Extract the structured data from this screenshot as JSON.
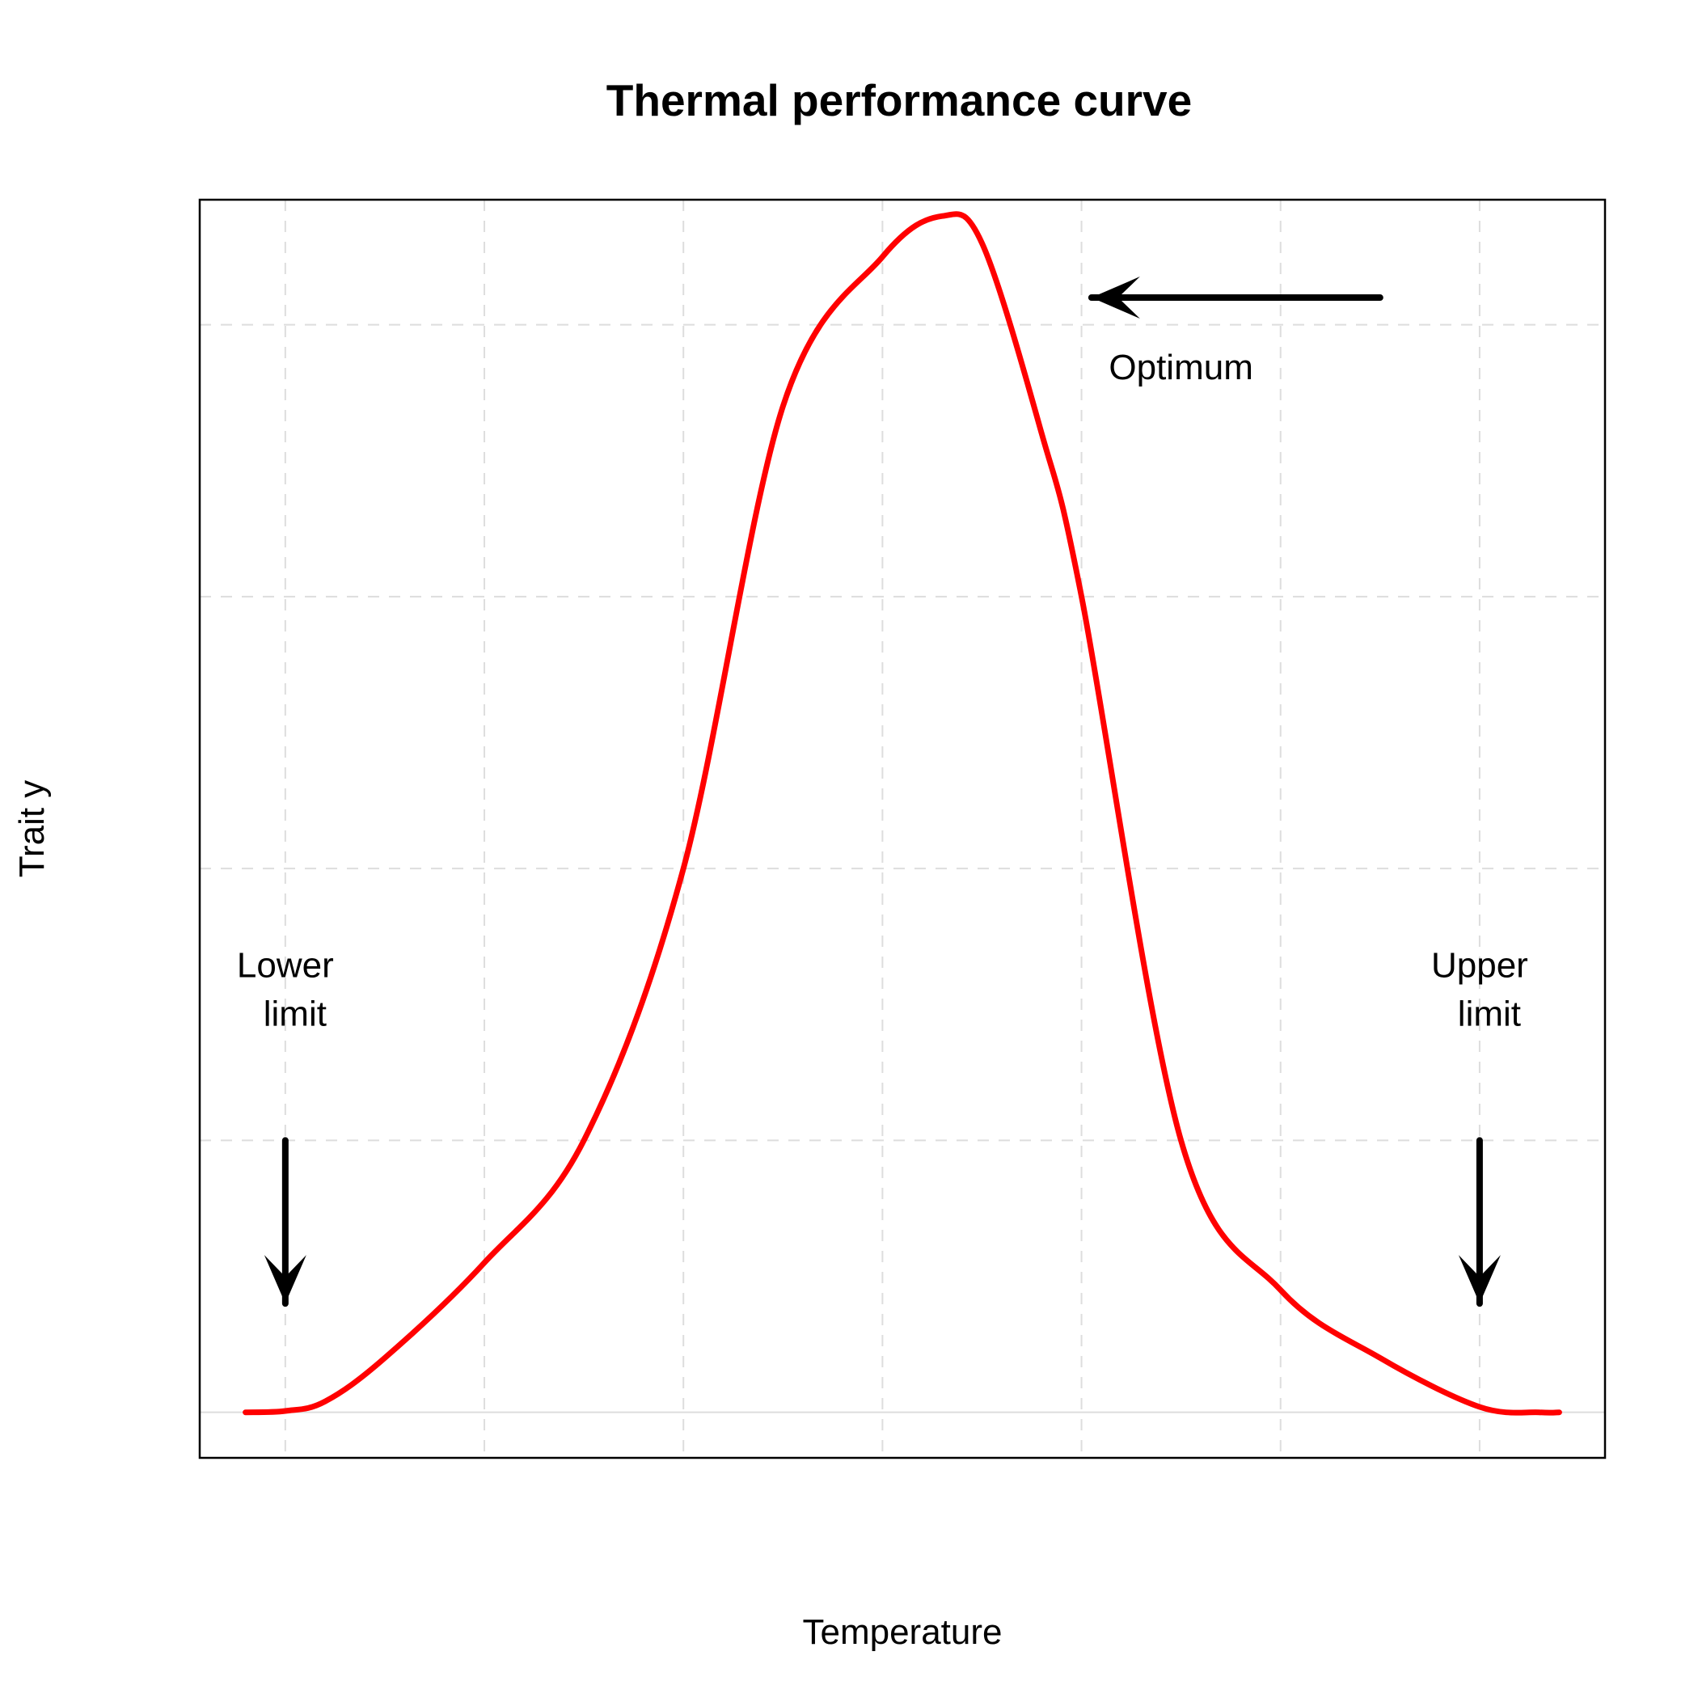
{
  "chart_data": {
    "type": "line",
    "title": "Thermal performance curve",
    "xlabel": "Temperature",
    "ylabel": "Trait y",
    "xlim": [
      0.57,
      7.63
    ],
    "ylim": [
      -0.0335,
      0.892
    ],
    "grid": true,
    "axis_ticks_shown": false,
    "colors": {
      "curve": "#ff0000",
      "grid": "#dddddd",
      "axes": "#000000",
      "arrows": "#000000"
    },
    "series": [
      {
        "x": [
          0.8,
          1.0,
          1.2,
          1.5,
          2.0,
          2.5,
          3.0,
          3.5,
          4.0,
          4.3,
          4.5,
          4.8,
          5.0,
          5.5,
          6.0,
          6.5,
          7.0,
          7.3,
          7.4
        ],
        "y": [
          0.0,
          0.001,
          0.008,
          0.04,
          0.11,
          0.2,
          0.4,
          0.74,
          0.85,
          0.88,
          0.86,
          0.72,
          0.6,
          0.2,
          0.09,
          0.04,
          0.004,
          0.0,
          0.0
        ]
      }
    ],
    "annotations": [
      {
        "label_lines": [
          "Optimum"
        ],
        "text_x": 5.5,
        "text_y": 0.76,
        "arrow_from": [
          6.5,
          0.82
        ],
        "arrow_to": [
          5.05,
          0.82
        ]
      },
      {
        "label_lines": [
          "Lower",
          "limit"
        ],
        "text_x": 1.0,
        "text_y": 0.32,
        "arrow_from": [
          1.0,
          0.2
        ],
        "arrow_to": [
          1.0,
          0.08
        ]
      },
      {
        "label_lines": [
          "Upper",
          "limit"
        ],
        "text_x": 7.0,
        "text_y": 0.32,
        "arrow_from": [
          7.0,
          0.2
        ],
        "arrow_to": [
          7.0,
          0.08
        ]
      }
    ]
  }
}
